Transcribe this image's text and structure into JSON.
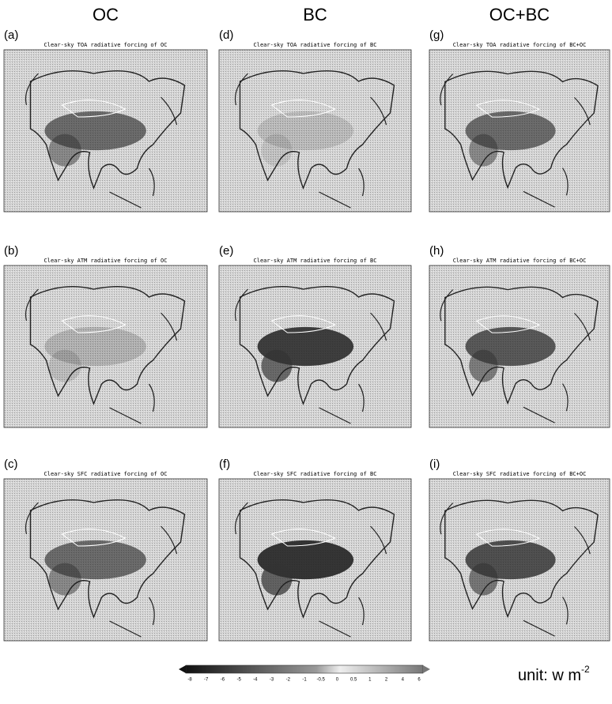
{
  "columns": [
    "OC",
    "BC",
    "OC+BC"
  ],
  "panels": [
    {
      "label": "(a)",
      "title": "Clear-sky TOA radiative forcing of OC"
    },
    {
      "label": "(b)",
      "title": "Clear-sky ATM radiative forcing of OC"
    },
    {
      "label": "(c)",
      "title": "Clear-sky SFC radiative forcing of OC"
    },
    {
      "label": "(d)",
      "title": "Clear-sky TOA radiative forcing of BC"
    },
    {
      "label": "(e)",
      "title": "Clear-sky ATM radiative forcing of BC"
    },
    {
      "label": "(f)",
      "title": "Clear-sky SFC radiative forcing of BC"
    },
    {
      "label": "(g)",
      "title": "Clear-sky TOA radiative forcing of BC+OC"
    },
    {
      "label": "(h)",
      "title": "Clear-sky ATM radiative forcing of BC+OC"
    },
    {
      "label": "(i)",
      "title": "Clear-sky SFC radiative forcing of BC+OC"
    }
  ],
  "colorbar": {
    "levels": [
      -8,
      -7,
      -6,
      -5,
      -4,
      -3,
      -2,
      -1,
      -0.5,
      0,
      0.5,
      1,
      2,
      4,
      6
    ]
  },
  "unit": {
    "text": "unit: w m",
    "exponent": "-2"
  }
}
